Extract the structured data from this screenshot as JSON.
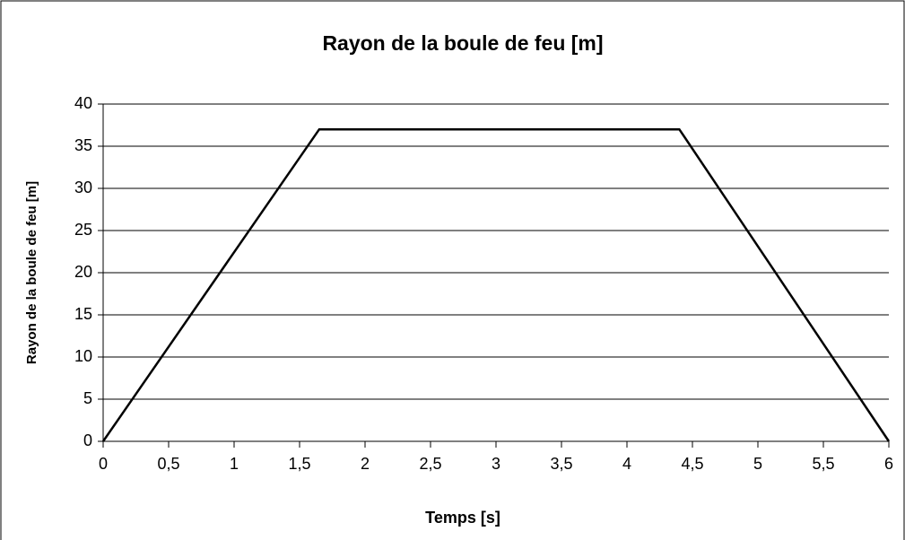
{
  "chart_data": {
    "type": "line",
    "title": "Rayon de la boule de feu [m]",
    "xlabel": "Temps [s]",
    "ylabel": "Rayon de la boule de feu [m]",
    "x": [
      0,
      1.65,
      4.4,
      6
    ],
    "series": [
      {
        "color": "#000000",
        "values": [
          0,
          37,
          37,
          0
        ]
      }
    ],
    "xlim": [
      0,
      6
    ],
    "ylim": [
      0,
      40
    ],
    "xticks": [
      0,
      {
        "value": 0.5,
        "label": "0,5"
      },
      1,
      {
        "value": 1.5,
        "label": "1,5"
      },
      2,
      {
        "value": 2.5,
        "label": "2,5"
      },
      3,
      {
        "value": 3.5,
        "label": "3,5"
      },
      4,
      {
        "value": 4.5,
        "label": "4,5"
      },
      5,
      {
        "value": 5.5,
        "label": "5,5"
      },
      6
    ],
    "yticks": [
      0,
      5,
      10,
      15,
      20,
      25,
      30,
      35,
      40
    ],
    "grid": true
  }
}
